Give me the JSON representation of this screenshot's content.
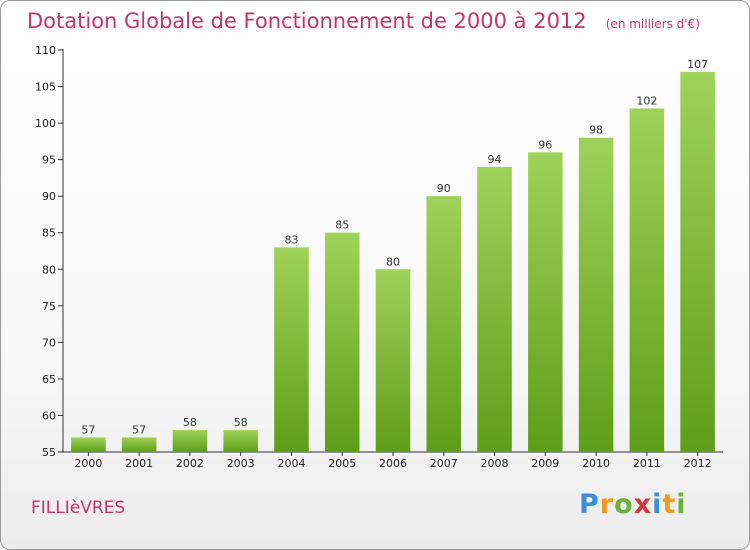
{
  "title": "Dotation Globale de Fonctionnement de 2000 à 2012",
  "subtitle": "(en milliers d'€)",
  "commune": "FILLIèVRES",
  "logo": {
    "letters": [
      "P",
      "r",
      "o",
      "x",
      "i",
      "t",
      "i"
    ]
  },
  "colors": {
    "title": "#c8346a",
    "bar_top": "#9fd25a",
    "bar_bottom": "#5e9e18"
  },
  "chart_data": {
    "type": "bar",
    "title": "Dotation Globale de Fonctionnement de 2000 à 2012",
    "subtitle": "(en milliers d'€)",
    "categories": [
      "2000",
      "2001",
      "2002",
      "2003",
      "2004",
      "2005",
      "2006",
      "2007",
      "2008",
      "2009",
      "2010",
      "2011",
      "2012"
    ],
    "values": [
      57,
      57,
      58,
      58,
      83,
      85,
      80,
      90,
      94,
      96,
      98,
      102,
      107
    ],
    "ylim": [
      55,
      110
    ],
    "yticks": [
      55,
      60,
      65,
      70,
      75,
      80,
      85,
      90,
      95,
      100,
      105,
      110
    ],
    "grid": false,
    "xlabel": "",
    "ylabel": ""
  }
}
